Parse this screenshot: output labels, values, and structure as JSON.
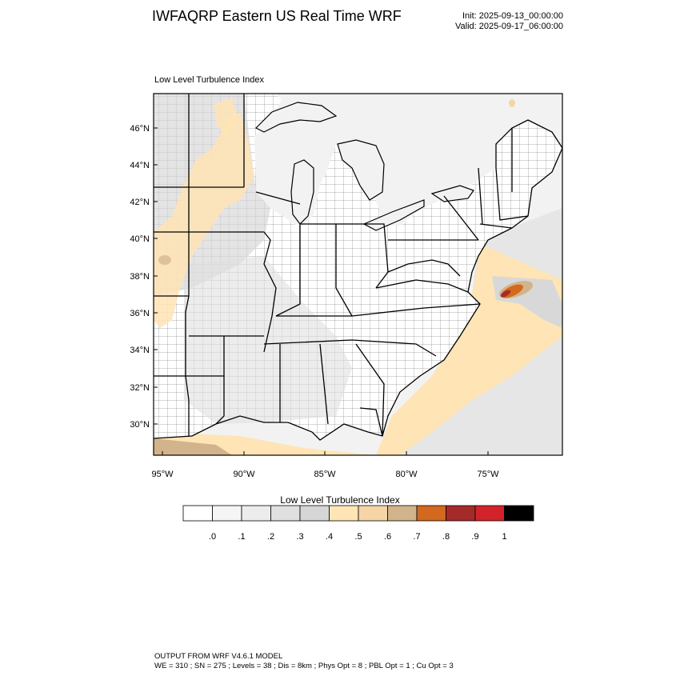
{
  "header": {
    "title": "IWFAQRP Eastern US Real Time WRF",
    "init": "Init: 2025-09-13_00:00:00",
    "valid": "Valid: 2025-09-17_06:00:00"
  },
  "map": {
    "panel_title": "Low Level Turbulence Index",
    "lat_labels": [
      "46°N",
      "44°N",
      "42°N",
      "40°N",
      "38°N",
      "36°N",
      "34°N",
      "32°N",
      "30°N"
    ],
    "lon_labels": [
      "95°W",
      "90°W",
      "85°W",
      "80°W",
      "75°W"
    ]
  },
  "colorbar": {
    "title": "Low Level Turbulence Index",
    "colors": [
      "#ffffff",
      "#f5f5f5",
      "#ececec",
      "#e0e0e0",
      "#d6d6d6",
      "#ffe4b5",
      "#f5d5a6",
      "#d2b48c",
      "#d2691e",
      "#a52a2a",
      "#d2232a",
      "#000000"
    ],
    "tick_labels": [
      ".0",
      ".1",
      ".2",
      ".3",
      ".4",
      ".5",
      ".6",
      ".7",
      ".8",
      ".9",
      "1"
    ]
  },
  "footer": {
    "line1": "OUTPUT FROM WRF V4.6.1 MODEL",
    "line2": "WE = 310 ; SN = 275 ; Levels = 38 ; Dis = 8km ; Phys Opt = 8 ; PBL Opt = 1 ; Cu Opt = 3"
  }
}
